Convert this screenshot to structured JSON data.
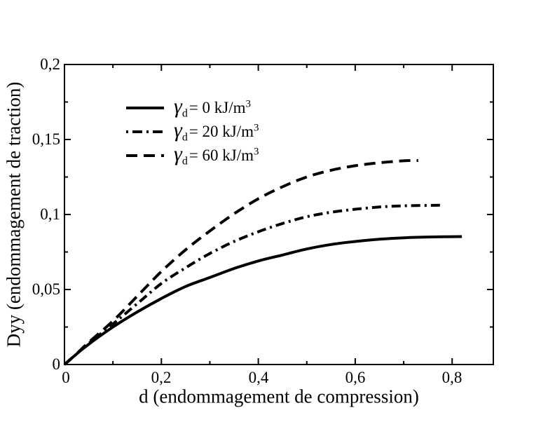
{
  "figure": {
    "background": "#ffffff",
    "ink_color": "#000000"
  },
  "axes": {
    "x": {
      "title": "d (endommagement de compression)",
      "major_ticks": [
        {
          "value": 0,
          "label": "0"
        },
        {
          "value": 0.2,
          "label": "0,2"
        },
        {
          "value": 0.4,
          "label": "0,4"
        },
        {
          "value": 0.6,
          "label": "0,6"
        },
        {
          "value": 0.8,
          "label": "0,8"
        }
      ],
      "minor_ticks": [
        0.1,
        0.3,
        0.5,
        0.7
      ]
    },
    "y": {
      "title": "Dyy (endommagement de traction)",
      "major_ticks": [
        {
          "value": 0,
          "label": "0"
        },
        {
          "value": 0.05,
          "label": "0,05"
        },
        {
          "value": 0.1,
          "label": "0,1"
        },
        {
          "value": 0.15,
          "label": "0,15"
        },
        {
          "value": 0.2,
          "label": "0,2"
        }
      ],
      "minor_ticks": [
        0.025,
        0.075,
        0.125,
        0.175
      ]
    }
  },
  "legend": {
    "items": [
      {
        "symbol": "γ",
        "sub": "d",
        "rest": "= 0 kJ/m",
        "sup": "3",
        "linestyle": "solid"
      },
      {
        "symbol": "γ",
        "sub": "d",
        "rest": "= 20 kJ/m",
        "sup": "3",
        "linestyle": "dashdot"
      },
      {
        "symbol": "γ",
        "sub": "d",
        "rest": "= 60 kJ/m",
        "sup": "3",
        "linestyle": "dashed"
      }
    ]
  },
  "chart_data": {
    "type": "line",
    "title": "",
    "xlabel": "d (endommagement de compression)",
    "ylabel": "Dyy (endommagement de traction)",
    "xlim": [
      0,
      0.885
    ],
    "ylim": [
      0,
      0.2
    ],
    "grid": false,
    "legend_position": "upper-left-inside",
    "line_color": "#000000",
    "series": [
      {
        "name": "γd = 0 kJ/m3",
        "linestyle": "solid",
        "points": [
          [
            0,
            0
          ],
          [
            0.025,
            0.007
          ],
          [
            0.05,
            0.0135
          ],
          [
            0.1,
            0.025
          ],
          [
            0.15,
            0.035
          ],
          [
            0.2,
            0.044
          ],
          [
            0.25,
            0.052
          ],
          [
            0.3,
            0.058
          ],
          [
            0.35,
            0.064
          ],
          [
            0.4,
            0.069
          ],
          [
            0.45,
            0.073
          ],
          [
            0.5,
            0.077
          ],
          [
            0.55,
            0.08
          ],
          [
            0.6,
            0.082
          ],
          [
            0.65,
            0.0835
          ],
          [
            0.7,
            0.0845
          ],
          [
            0.75,
            0.085
          ],
          [
            0.82,
            0.0853
          ]
        ]
      },
      {
        "name": "γd = 20 kJ/m3",
        "linestyle": "dashdot",
        "points": [
          [
            0,
            0
          ],
          [
            0.025,
            0.007
          ],
          [
            0.05,
            0.014
          ],
          [
            0.1,
            0.027
          ],
          [
            0.15,
            0.0405
          ],
          [
            0.2,
            0.054
          ],
          [
            0.25,
            0.0645
          ],
          [
            0.3,
            0.074
          ],
          [
            0.35,
            0.082
          ],
          [
            0.4,
            0.0885
          ],
          [
            0.45,
            0.094
          ],
          [
            0.5,
            0.0985
          ],
          [
            0.55,
            0.1015
          ],
          [
            0.6,
            0.1035
          ],
          [
            0.65,
            0.105
          ],
          [
            0.7,
            0.1058
          ],
          [
            0.78,
            0.1062
          ]
        ]
      },
      {
        "name": "γd = 60 kJ/m3",
        "linestyle": "dashed",
        "points": [
          [
            0,
            0
          ],
          [
            0.025,
            0.0072
          ],
          [
            0.05,
            0.0148
          ],
          [
            0.1,
            0.029
          ],
          [
            0.15,
            0.0455
          ],
          [
            0.2,
            0.062
          ],
          [
            0.25,
            0.0765
          ],
          [
            0.3,
            0.089
          ],
          [
            0.35,
            0.1005
          ],
          [
            0.4,
            0.1105
          ],
          [
            0.45,
            0.1185
          ],
          [
            0.5,
            0.125
          ],
          [
            0.55,
            0.1295
          ],
          [
            0.6,
            0.1325
          ],
          [
            0.65,
            0.1345
          ],
          [
            0.7,
            0.1358
          ],
          [
            0.73,
            0.136
          ]
        ]
      }
    ]
  }
}
